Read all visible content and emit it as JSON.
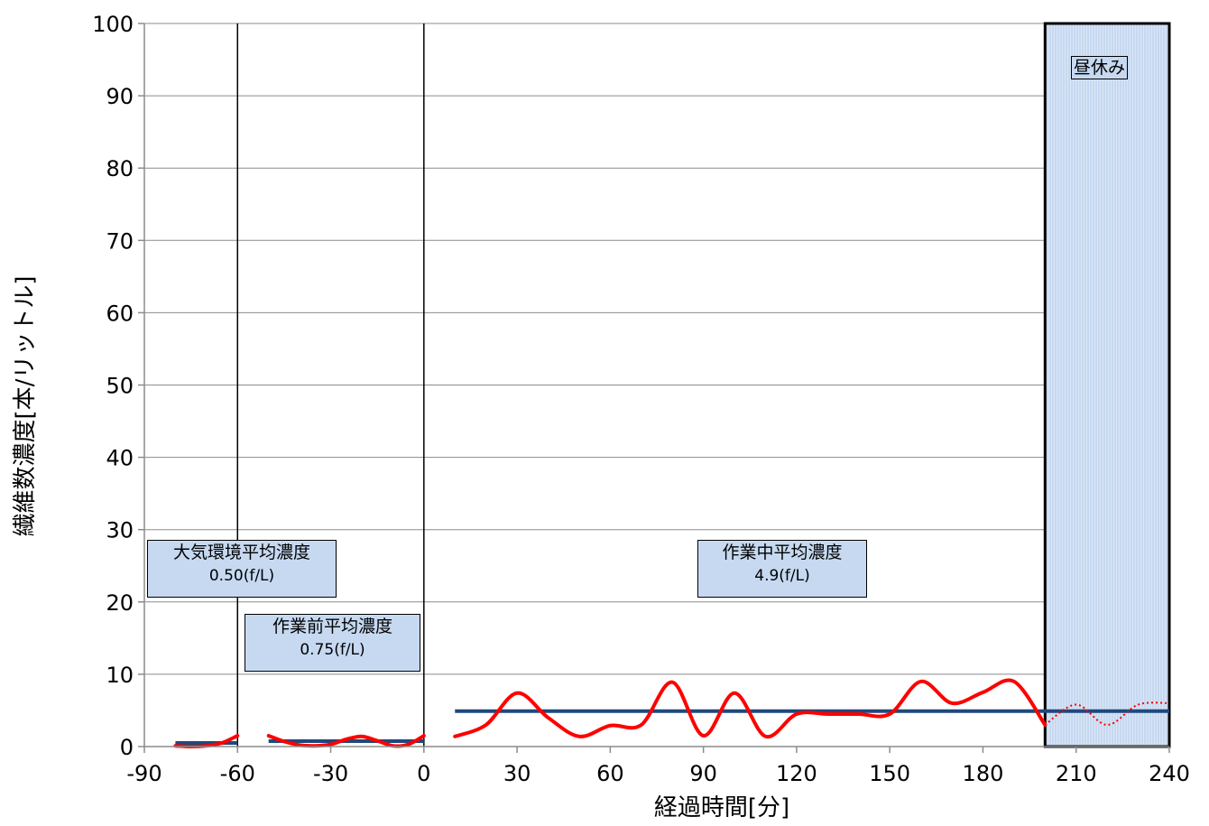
{
  "chart_data": {
    "type": "line",
    "xlabel": "経過時間[分]",
    "ylabel": "繊維数濃度[本/リットル]",
    "xlim": [
      -90,
      240
    ],
    "ylim": [
      0,
      100
    ],
    "x_ticks": [
      "-90",
      "-60",
      "-30",
      "0",
      "30",
      "60",
      "90",
      "120",
      "150",
      "180",
      "210",
      "240"
    ],
    "y_ticks": [
      "0",
      "10",
      "20",
      "30",
      "40",
      "50",
      "60",
      "70",
      "80",
      "90",
      "100"
    ],
    "grid": true,
    "dividers_x": [
      -60,
      0
    ],
    "lunch_break": {
      "label": "昼休み",
      "x_start": 200,
      "x_end": 240
    },
    "series": [
      {
        "color": "#ff0000",
        "segments": [
          {
            "x": [
              -80,
              -75,
              -70,
              -65,
              -60
            ],
            "y": [
              0.1,
              0.0,
              0.1,
              0.5,
              1.5
            ]
          },
          {
            "x": [
              -50,
              -45,
              -40,
              -35,
              -30,
              -25,
              -20,
              -15,
              -10,
              -5,
              0
            ],
            "y": [
              1.5,
              0.7,
              0.2,
              0.1,
              0.3,
              1.0,
              1.4,
              0.8,
              0.1,
              0.3,
              1.5
            ]
          },
          {
            "x": [
              10,
              20,
              30,
              40,
              50,
              60,
              70,
              80,
              90,
              100,
              110,
              120,
              130,
              140,
              150,
              160,
              170,
              180,
              190,
              200
            ],
            "y": [
              1.4,
              3.0,
              7.4,
              4.0,
              1.4,
              2.9,
              3.0,
              8.9,
              1.5,
              7.4,
              1.4,
              4.5,
              4.5,
              4.5,
              4.5,
              9.0,
              6.0,
              7.5,
              9.0,
              3.0
            ]
          }
        ],
        "dotted_segment": {
          "x": [
            200,
            210,
            220,
            230,
            240
          ],
          "y": [
            3.0,
            5.8,
            3.0,
            5.8,
            6.0
          ]
        }
      }
    ],
    "averages": [
      {
        "label": "大気環境平均濃度",
        "value_text": "0.50(f/L)",
        "value": 0.5,
        "x_range": [
          -80,
          -60
        ]
      },
      {
        "label": "作業前平均濃度",
        "value_text": "0.75(f/L)",
        "value": 0.75,
        "x_range": [
          -50,
          0
        ]
      },
      {
        "label": "作業中平均濃度",
        "value_text": "4.9(f/L)",
        "value": 4.9,
        "x_range": [
          10,
          240
        ]
      }
    ],
    "colors": {
      "series": "#ff0000",
      "average": "#1f497d",
      "label_fill": "#c6d9f1",
      "lunch_fill": "#c6d9f1"
    }
  }
}
